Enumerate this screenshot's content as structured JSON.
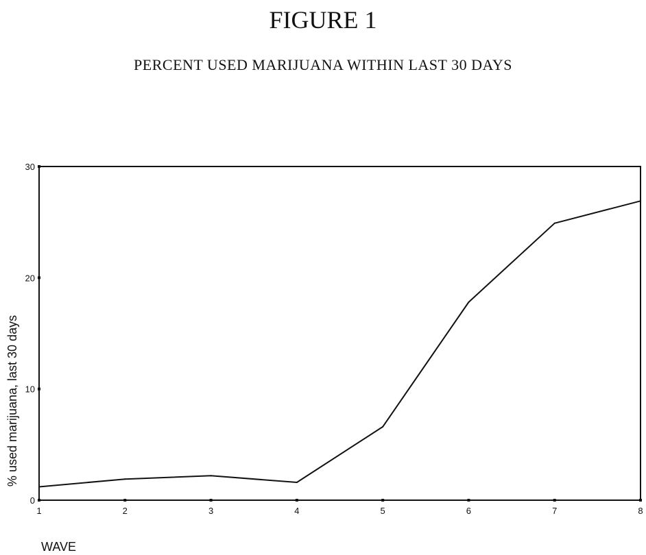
{
  "figure": {
    "title": "FIGURE 1",
    "subtitle": "PERCENT USED MARIJUANA WITHIN LAST 30 DAYS"
  },
  "chart_data": {
    "type": "line",
    "title": "PERCENT USED MARIJUANA WITHIN LAST 30 DAYS",
    "xlabel": "WAVE",
    "ylabel": "% used marijuana, last 30 days",
    "x": [
      1,
      2,
      3,
      4,
      5,
      6,
      7,
      8
    ],
    "series": [
      {
        "values": [
          1.2,
          1.9,
          2.2,
          1.6,
          6.6,
          17.8,
          24.9,
          26.9
        ]
      }
    ],
    "xlim": [
      1,
      8
    ],
    "ylim": [
      0,
      30
    ],
    "x_ticks": [
      "1",
      "2",
      "3",
      "4",
      "5",
      "6",
      "7",
      "8"
    ],
    "y_ticks": [
      "0",
      "10",
      "20",
      "30"
    ],
    "grid": false,
    "legend": "none",
    "line_color": "#111111"
  }
}
